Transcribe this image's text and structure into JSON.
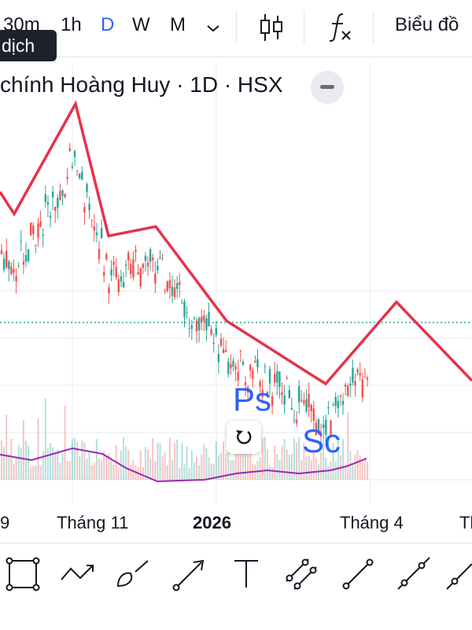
{
  "toolbar_top": {
    "intervals": [
      "30m",
      "1h",
      "D",
      "W",
      "M"
    ],
    "active_interval": "D",
    "chart_type_icon": "candlestick-icon",
    "indicators_icon": "fx-icon",
    "chart_label": "Biểu đồ"
  },
  "tooltip": "dịch",
  "legend": {
    "text": "chính Hoàng Huy · 1D · HSX"
  },
  "annotations": {
    "ps": "Ps",
    "sc": "Sc"
  },
  "chart_data": {
    "type": "line",
    "title": "",
    "x_labels": [
      "9",
      "Tháng 11",
      "2026",
      "Tháng 4",
      "Th"
    ],
    "series": [
      {
        "values": [
          {
            "x": 0.0,
            "y": 69
          },
          {
            "x": 0.03,
            "y": 62
          },
          {
            "x": 0.16,
            "y": 97
          },
          {
            "x": 0.23,
            "y": 55
          },
          {
            "x": 0.33,
            "y": 58
          },
          {
            "x": 0.48,
            "y": 28
          },
          {
            "x": 0.69,
            "y": 8
          },
          {
            "x": 0.84,
            "y": 34
          },
          {
            "x": 1.0,
            "y": 9
          }
        ]
      }
    ],
    "price_range": [
      0,
      100
    ],
    "grid": true
  },
  "drawing_tools": [
    "rectangle-icon",
    "path-icon",
    "brush-icon",
    "arrow-icon",
    "text-icon",
    "parallel-channel-icon",
    "trend-line-icon",
    "ray-icon",
    "extended-line-icon"
  ]
}
